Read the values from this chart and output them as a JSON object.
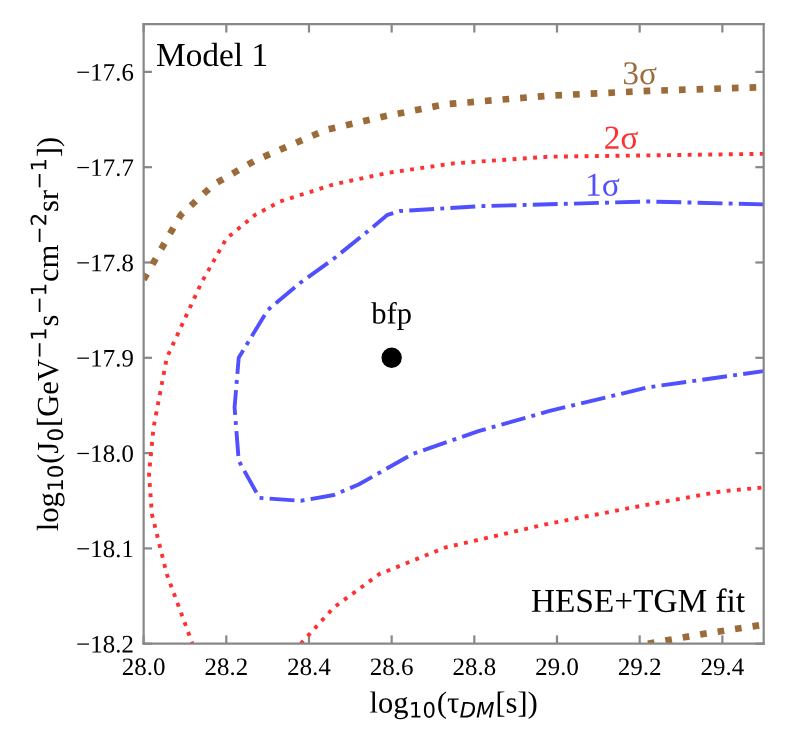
{
  "chart_data": {
    "type": "line",
    "xlabel": "log$_{10}$(τ$_{DM}$[s])",
    "ylabel": "log$_{10}$(J$_{0}$[GeV$^{−1}$s$^{−1}$cm$^{−2}$sr$^{−1}$])",
    "annotations": [
      "Model 1",
      "HESE+TGM fit"
    ],
    "xlim": [
      28.0,
      29.5
    ],
    "ylim": [
      -18.2,
      -17.55
    ],
    "xticks": [
      {
        "value": 28.0,
        "label": "28.0"
      },
      {
        "value": 28.2,
        "label": "28.2"
      },
      {
        "value": 28.4,
        "label": "28.4"
      },
      {
        "value": 28.6,
        "label": "28.6"
      },
      {
        "value": 28.8,
        "label": "28.8"
      },
      {
        "value": 29.0,
        "label": "29.0"
      },
      {
        "value": 29.2,
        "label": "29.2"
      },
      {
        "value": 29.4,
        "label": "29.4"
      }
    ],
    "yticks": [
      {
        "value": -18.2,
        "label": "−18.2"
      },
      {
        "value": -18.1,
        "label": "−18.1"
      },
      {
        "value": -18.0,
        "label": "−18.0"
      },
      {
        "value": -17.9,
        "label": "−17.9"
      },
      {
        "value": -17.8,
        "label": "−17.8"
      },
      {
        "value": -17.7,
        "label": "−17.7"
      },
      {
        "value": -17.6,
        "label": "−17.6"
      }
    ],
    "grid": false,
    "legend": false,
    "series": [
      {
        "name": "3σ",
        "color": "#9b6b3a",
        "line_style": "dotted",
        "x": [
          28.0,
          28.09,
          28.17,
          28.27,
          28.44,
          28.59,
          28.73,
          28.98,
          29.22,
          29.5,
          null,
          29.22,
          29.35,
          29.5
        ],
        "values": [
          -17.818,
          -17.75,
          -17.718,
          -17.693,
          -17.661,
          -17.646,
          -17.634,
          -17.625,
          -17.62,
          -17.616,
          null,
          -18.2,
          -18.19,
          -18.18
        ]
      },
      {
        "name": "2σ",
        "color": "#ff3030",
        "line_style": "dotted",
        "x": [
          29.5,
          28.98,
          28.75,
          28.59,
          28.46,
          28.33,
          28.27,
          28.2,
          28.14,
          28.056,
          28.024,
          28.013,
          28.02,
          28.056,
          28.118,
          null,
          28.38,
          28.46,
          28.57,
          28.73,
          28.98,
          29.22,
          29.4,
          29.5
        ],
        "values": [
          -17.686,
          -17.689,
          -17.696,
          -17.706,
          -17.718,
          -17.736,
          -17.75,
          -17.775,
          -17.821,
          -17.9,
          -17.973,
          -18.022,
          -18.064,
          -18.127,
          -18.2,
          null,
          -18.2,
          -18.162,
          -18.127,
          -18.099,
          -18.074,
          -18.054,
          -18.04,
          -18.036
        ]
      },
      {
        "name": "1σ",
        "color": "#5050ff",
        "line_style": "dashdot",
        "x": [
          29.5,
          29.22,
          28.81,
          28.62,
          28.59,
          28.54,
          28.46,
          28.38,
          28.3,
          28.23,
          28.22,
          28.23,
          28.28,
          28.38,
          28.46,
          28.52,
          28.65,
          28.81,
          28.98,
          29.22,
          29.5
        ],
        "values": [
          -17.739,
          -17.736,
          -17.741,
          -17.746,
          -17.75,
          -17.768,
          -17.796,
          -17.821,
          -17.85,
          -17.9,
          -17.952,
          -18.008,
          -18.047,
          -18.05,
          -18.044,
          -18.033,
          -18.001,
          -17.977,
          -17.956,
          -17.931,
          -17.914
        ]
      },
      {
        "name": "bfp",
        "type": "scatter",
        "color": "#000000",
        "marker": "circle",
        "x": [
          28.6
        ],
        "values": [
          -17.9
        ]
      }
    ]
  }
}
